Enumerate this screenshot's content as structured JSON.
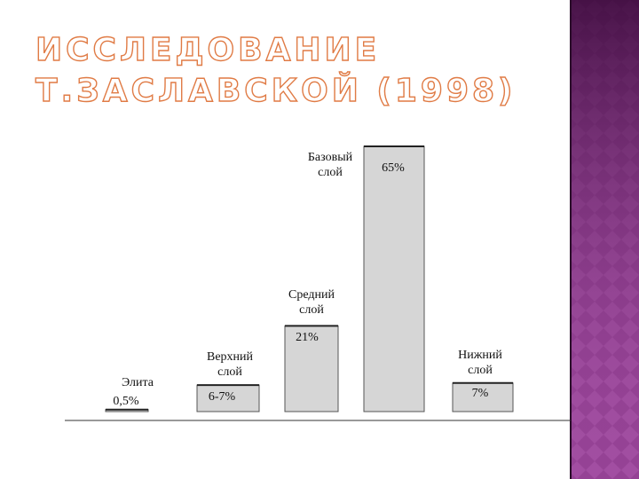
{
  "chart_data": {
    "type": "bar",
    "title": "ИССЛЕДОВАНИЕ Т.ЗАСЛАВСКОЙ (1998)",
    "categories": [
      [
        "Элита"
      ],
      [
        "Верхний",
        "слой"
      ],
      [
        "Средний",
        "слой"
      ],
      [
        "Базовый",
        "слой"
      ],
      [
        "Нижний",
        "слой"
      ]
    ],
    "values": [
      0.5,
      6.5,
      21,
      65,
      7
    ],
    "value_labels": [
      "0,5%",
      "6-7%",
      "21%",
      "65%",
      "7%"
    ],
    "color": "#d6d6d6"
  }
}
